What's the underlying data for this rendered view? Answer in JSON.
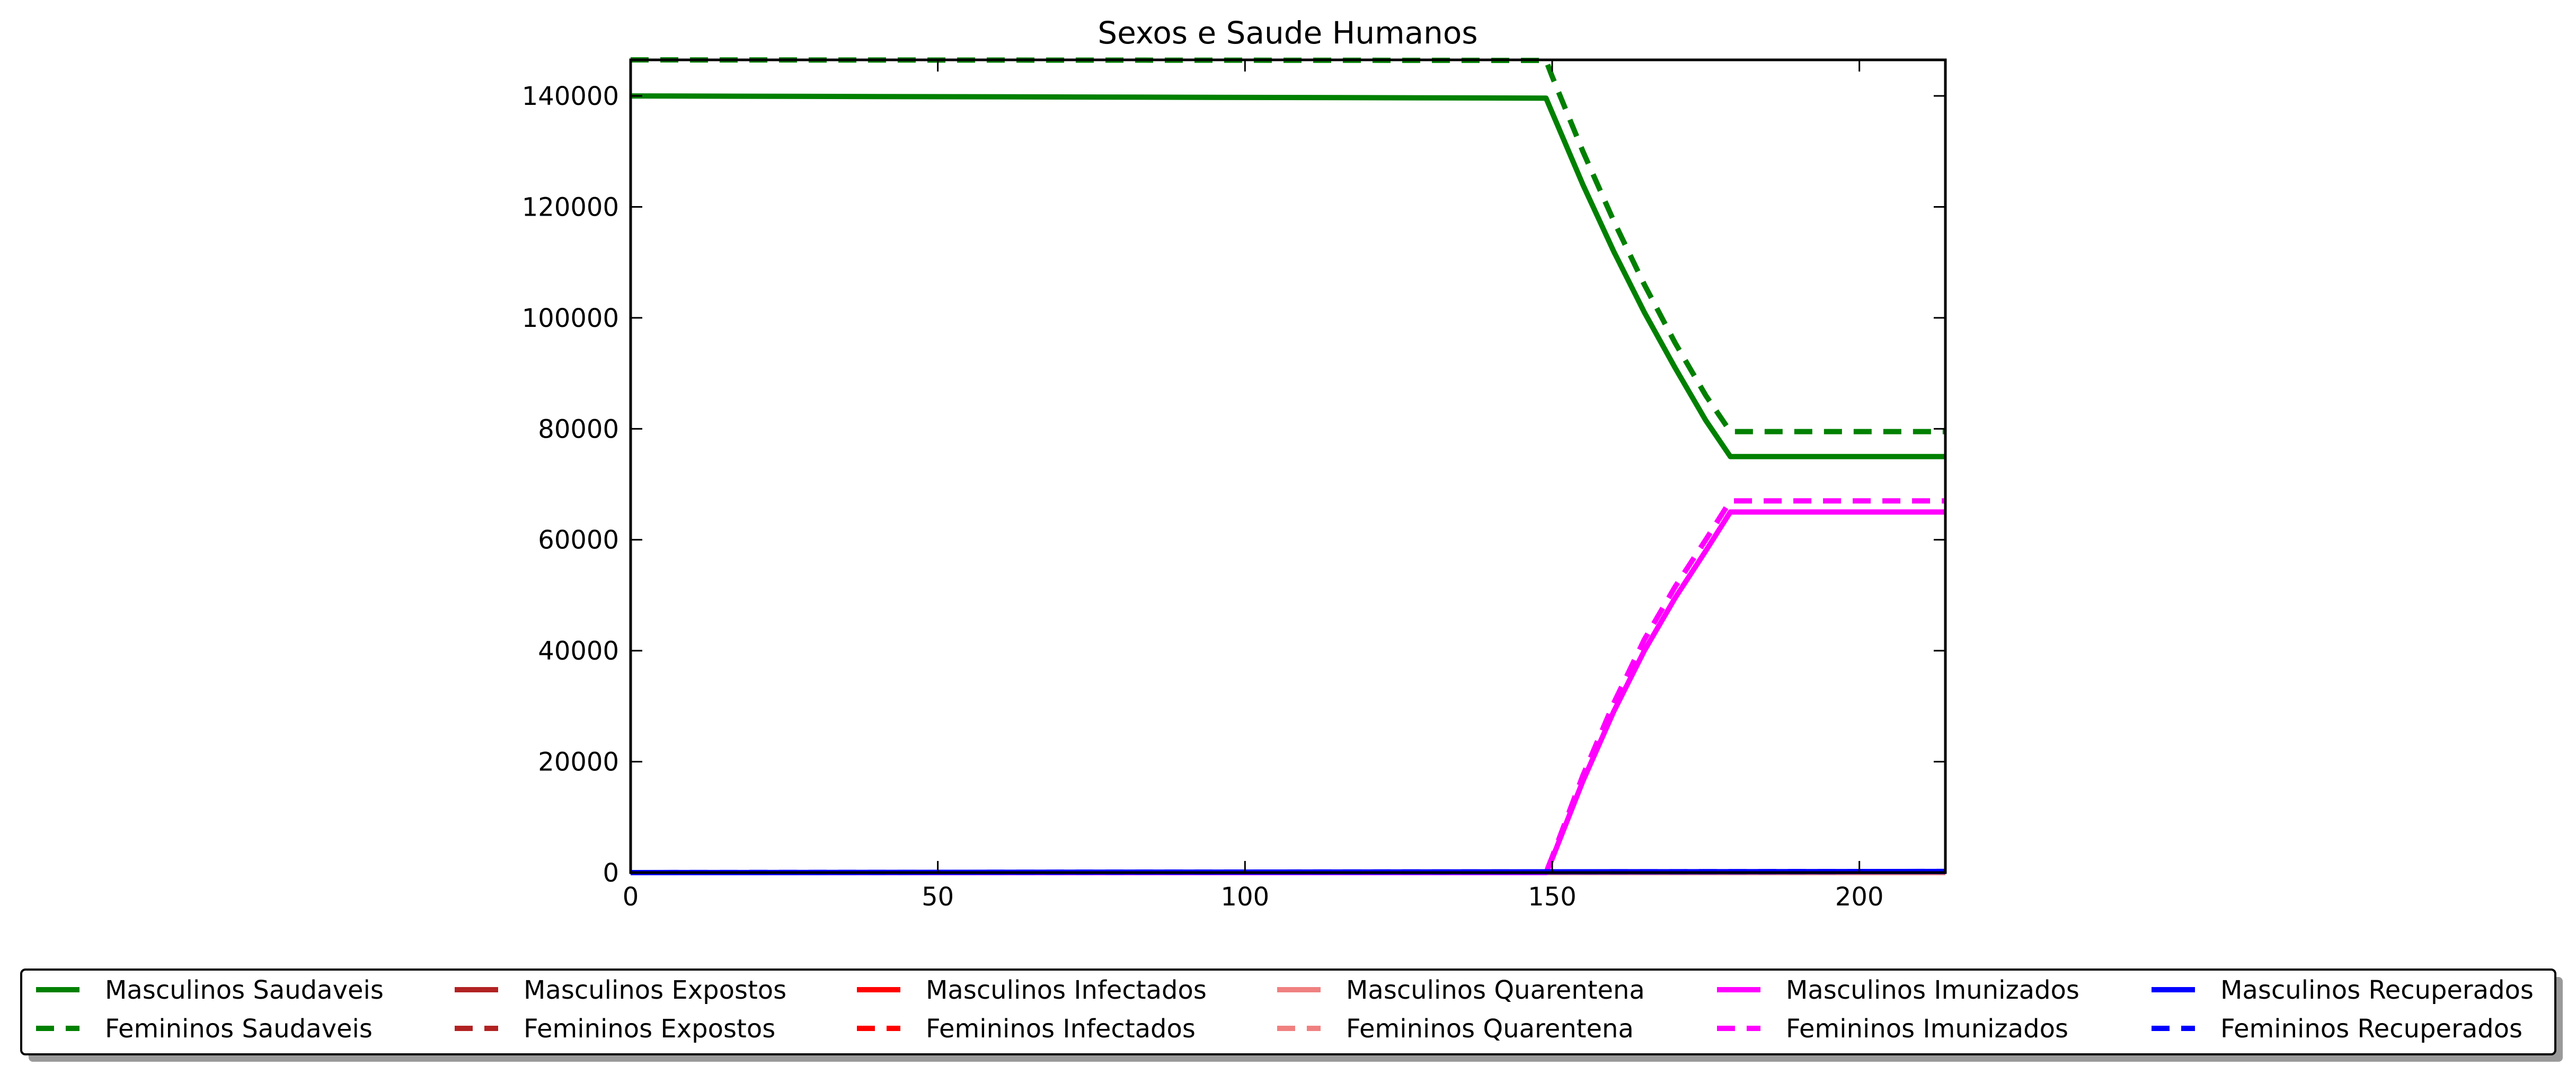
{
  "chart_data": {
    "type": "line",
    "title": "Sexos e Saude Humanos",
    "xlabel": "",
    "ylabel": "",
    "xlim": [
      0,
      214
    ],
    "ylim": [
      0,
      146500
    ],
    "x_ticks": [
      0,
      50,
      100,
      150,
      200
    ],
    "y_ticks": [
      0,
      20000,
      40000,
      60000,
      80000,
      100000,
      120000,
      140000
    ],
    "grid": false,
    "legend": {
      "placement": "bottom, outside plot area",
      "columns": 6
    },
    "series": [
      {
        "name": "Masculinos Saudaveis",
        "color": "#008000",
        "dash": "solid",
        "x": [
          0,
          149,
          150,
          155,
          160,
          165,
          170,
          175,
          179,
          180,
          214
        ],
        "y": [
          140000,
          139600,
          137000,
          124000,
          112000,
          101000,
          91000,
          81500,
          75000,
          75000,
          75000
        ]
      },
      {
        "name": "Femininos Saudaveis",
        "color": "#008000",
        "dash": "dashed",
        "x": [
          0,
          149,
          150,
          155,
          160,
          165,
          170,
          175,
          179,
          180,
          214
        ],
        "y": [
          146500,
          146400,
          143500,
          130000,
          117500,
          106000,
          95500,
          86000,
          79500,
          79500,
          79500
        ]
      },
      {
        "name": "Masculinos Expostos",
        "color": "#b22222",
        "dash": "solid",
        "x": [
          0,
          214
        ],
        "y": [
          0,
          0
        ]
      },
      {
        "name": "Femininos Expostos",
        "color": "#b22222",
        "dash": "dashed",
        "x": [
          0,
          214
        ],
        "y": [
          0,
          0
        ]
      },
      {
        "name": "Masculinos Infectados",
        "color": "#ff0000",
        "dash": "solid",
        "x": [
          0,
          214
        ],
        "y": [
          0,
          0
        ]
      },
      {
        "name": "Femininos Infectados",
        "color": "#ff0000",
        "dash": "dashed",
        "x": [
          0,
          214
        ],
        "y": [
          0,
          0
        ]
      },
      {
        "name": "Masculinos Quarentena",
        "color": "#f08080",
        "dash": "solid",
        "x": [
          0,
          214
        ],
        "y": [
          0,
          0
        ]
      },
      {
        "name": "Femininos Quarentena",
        "color": "#f08080",
        "dash": "dashed",
        "x": [
          0,
          214
        ],
        "y": [
          0,
          0
        ]
      },
      {
        "name": "Masculinos Imunizados",
        "color": "#ff00ff",
        "dash": "solid",
        "x": [
          0,
          149,
          150,
          155,
          160,
          165,
          170,
          175,
          179,
          180,
          214
        ],
        "y": [
          0,
          0,
          2500,
          16500,
          29000,
          40000,
          49500,
          58000,
          65000,
          65000,
          65000
        ]
      },
      {
        "name": "Femininos Imunizados",
        "color": "#ff00ff",
        "dash": "dashed",
        "x": [
          0,
          149,
          150,
          155,
          160,
          165,
          170,
          175,
          179,
          180,
          214
        ],
        "y": [
          0,
          0,
          2800,
          17500,
          30500,
          42000,
          51500,
          60000,
          67000,
          67000,
          67000
        ]
      },
      {
        "name": "Masculinos Recuperados",
        "color": "#0000ff",
        "dash": "solid",
        "x": [
          0,
          214
        ],
        "y": [
          0,
          200
        ]
      },
      {
        "name": "Femininos Recuperados",
        "color": "#0000ff",
        "dash": "dashed",
        "x": [
          0,
          214
        ],
        "y": [
          0,
          200
        ]
      }
    ]
  }
}
